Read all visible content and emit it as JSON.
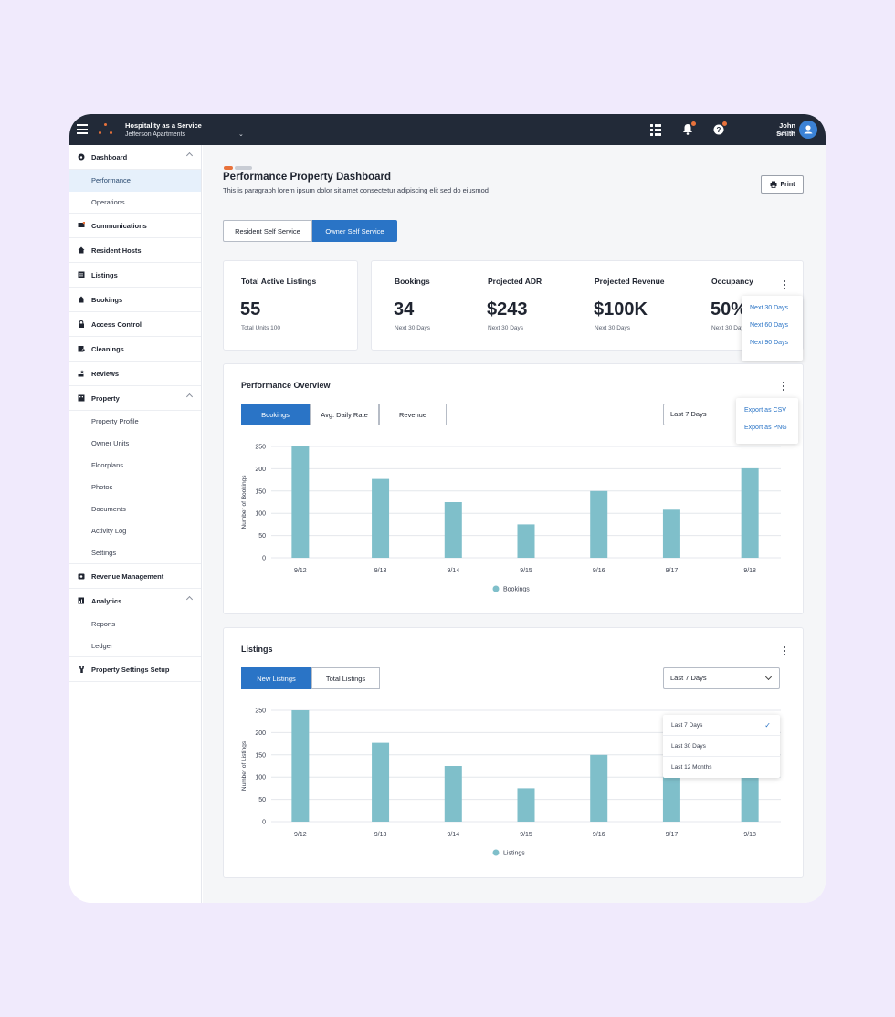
{
  "topbar": {
    "app_title": "Hospitality as a Service",
    "property": "Jefferson Apartments",
    "user_name": "John Smith",
    "user_role": "Admin"
  },
  "sidebar": {
    "dashboard": "Dashboard",
    "performance": "Performance",
    "operations": "Operations",
    "communications": "Communications",
    "resident_hosts": "Resident Hosts",
    "listings": "Listings",
    "bookings": "Bookings",
    "access_control": "Access Control",
    "cleanings": "Cleanings",
    "reviews": "Reviews",
    "property": "Property",
    "property_profile": "Property Profile",
    "owner_units": "Owner Units",
    "floorplans": "Floorplans",
    "photos": "Photos",
    "documents": "Documents",
    "activity_log": "Activity Log",
    "settings": "Settings",
    "revenue_management": "Revenue Management",
    "analytics": "Analytics",
    "reports": "Reports",
    "ledger": "Ledger",
    "property_settings_setup": "Property Settings Setup"
  },
  "header": {
    "title": "Performance Property Dashboard",
    "description": "This is paragraph lorem ipsum dolor sit amet consectetur adipiscing elit sed do eiusmod",
    "print": "Print"
  },
  "service_tabs": [
    "Resident Self Service",
    "Owner Self Service"
  ],
  "stats": {
    "active_listings": {
      "label": "Total Active Listings",
      "value": "55",
      "sub": "Total Units 100"
    },
    "bookings": {
      "label": "Bookings",
      "value": "34",
      "sub": "Next 30 Days"
    },
    "adr": {
      "label": "Projected ADR",
      "value": "$243",
      "sub": "Next 30 Days"
    },
    "revenue": {
      "label": "Projected Revenue",
      "value": "$100K",
      "sub": "Next 30 Days"
    },
    "occupancy": {
      "label": "Occupancy",
      "value": "50%",
      "sub": "Next 30 Days"
    },
    "range_menu": [
      "Next 30 Days",
      "Next 60 Days",
      "Next 90 Days"
    ]
  },
  "overview": {
    "title": "Performance Overview",
    "tabs": [
      "Bookings",
      "Avg. Daily Rate",
      "Revenue"
    ],
    "range": "Last 7 Days",
    "export_menu": [
      "Export as CSV",
      "Export as PNG"
    ]
  },
  "listings_card": {
    "title": "Listings",
    "tabs": [
      "New Listings",
      "Total Listings"
    ],
    "range": "Last 7 Days",
    "range_options": [
      "Last 7 Days",
      "Last 30 Days",
      "Last 12 Months"
    ]
  },
  "colors": {
    "accent": "#2a74c6",
    "bar": "#7fbfca",
    "topbar": "#222a38",
    "brand": "#e8723b"
  },
  "chart_data": [
    {
      "type": "bar",
      "categories": [
        "9/12",
        "9/13",
        "9/14",
        "9/15",
        "9/16",
        "9/17",
        "9/18"
      ],
      "series": [
        {
          "name": "Bookings",
          "values": [
            250,
            177,
            125,
            75,
            150,
            108,
            201
          ]
        }
      ],
      "ylabel": "Number of Bookings",
      "ylim": [
        0,
        250
      ],
      "yticks": [
        0,
        50,
        100,
        150,
        200,
        250
      ],
      "grid": true,
      "legend": "bottom-center"
    },
    {
      "type": "bar",
      "categories": [
        "9/12",
        "9/13",
        "9/14",
        "9/15",
        "9/16",
        "9/17",
        "9/18"
      ],
      "series": [
        {
          "name": "Listings",
          "values": [
            250,
            177,
            125,
            75,
            150,
            108,
            150
          ]
        }
      ],
      "ylabel": "Number of Listings",
      "ylim": [
        0,
        250
      ],
      "yticks": [
        0,
        50,
        100,
        150,
        200,
        250
      ],
      "grid": true,
      "legend": "bottom-center"
    }
  ]
}
